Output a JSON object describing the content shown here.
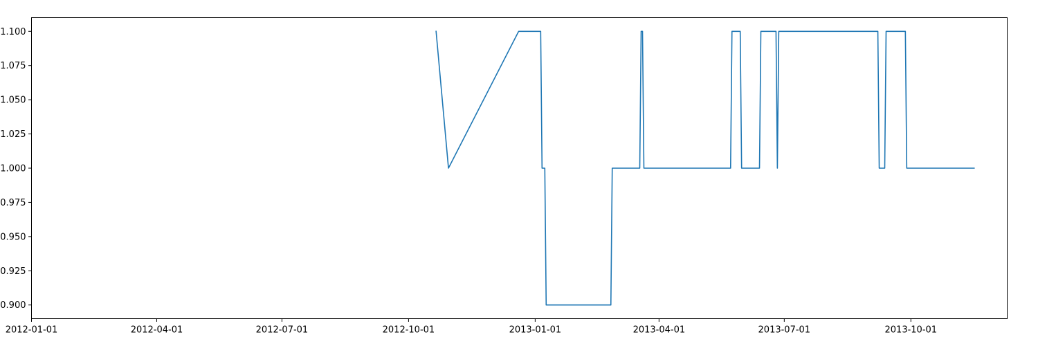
{
  "chart_data": {
    "type": "line",
    "title": "",
    "xlabel": "",
    "ylabel": "",
    "x_axis_type": "date",
    "xlim": [
      "2012-01-01",
      "2013-12-10"
    ],
    "ylim": [
      0.89,
      1.11
    ],
    "grid": false,
    "legend": "none",
    "x_ticks": [
      "2012-01-01",
      "2012-04-01",
      "2012-07-01",
      "2012-10-01",
      "2013-01-01",
      "2013-04-01",
      "2013-07-01",
      "2013-10-01"
    ],
    "y_ticks": [
      0.9,
      0.925,
      0.95,
      0.975,
      1.0,
      1.025,
      1.05,
      1.075,
      1.1
    ],
    "y_tick_labels": [
      "0.900",
      "0.925",
      "0.950",
      "0.975",
      "1.000",
      "1.025",
      "1.050",
      "1.075",
      "1.100"
    ],
    "series": [
      {
        "color": "#1f77b4",
        "points": [
          [
            "2012-10-21",
            1.1
          ],
          [
            "2012-10-30",
            1.0
          ],
          [
            "2012-12-20",
            1.1
          ],
          [
            "2013-01-05",
            1.1
          ],
          [
            "2013-01-06",
            1.0
          ],
          [
            "2013-01-08",
            1.0
          ],
          [
            "2013-01-09",
            0.9
          ],
          [
            "2013-02-25",
            0.9
          ],
          [
            "2013-02-26",
            1.0
          ],
          [
            "2013-03-18",
            1.0
          ],
          [
            "2013-03-19",
            1.1
          ],
          [
            "2013-03-20",
            1.1
          ],
          [
            "2013-03-21",
            1.0
          ],
          [
            "2013-05-23",
            1.0
          ],
          [
            "2013-05-24",
            1.1
          ],
          [
            "2013-05-30",
            1.1
          ],
          [
            "2013-05-31",
            1.0
          ],
          [
            "2013-06-13",
            1.0
          ],
          [
            "2013-06-14",
            1.1
          ],
          [
            "2013-06-25",
            1.1
          ],
          [
            "2013-06-26",
            1.0
          ],
          [
            "2013-06-27",
            1.1
          ],
          [
            "2013-09-07",
            1.1
          ],
          [
            "2013-09-08",
            1.0
          ],
          [
            "2013-09-12",
            1.0
          ],
          [
            "2013-09-13",
            1.1
          ],
          [
            "2013-09-27",
            1.1
          ],
          [
            "2013-09-28",
            1.0
          ],
          [
            "2013-11-16",
            1.0
          ]
        ]
      }
    ]
  }
}
